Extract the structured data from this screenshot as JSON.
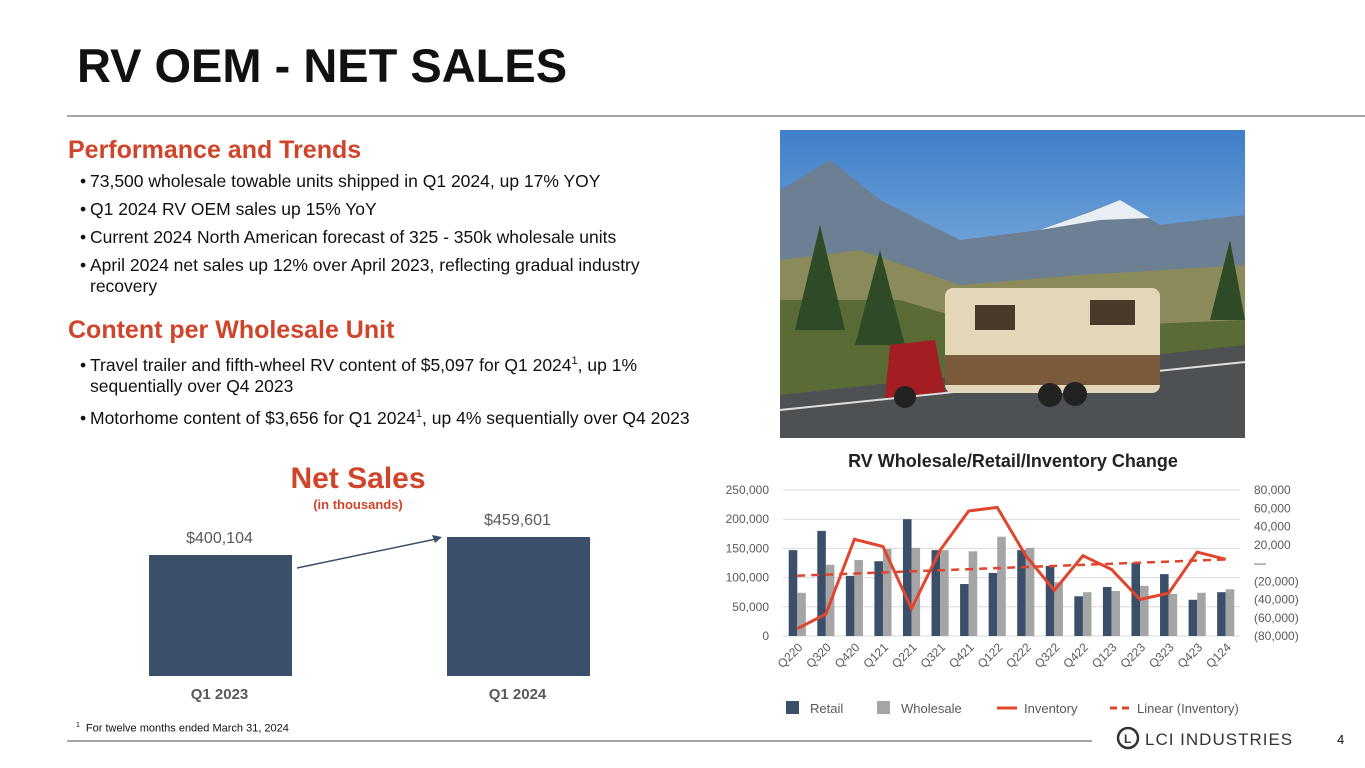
{
  "header": {
    "title": "RV OEM - NET SALES"
  },
  "sections": [
    {
      "heading": "Performance and Trends",
      "bullets": [
        {
          "text": "73,500 wholesale towable units shipped in Q1 2024, up 17% YOY"
        },
        {
          "text": "Q1 2024 RV OEM sales up 15% YoY"
        },
        {
          "text": "Current 2024 North American forecast of 325 - 350k wholesale units"
        },
        {
          "text": "April 2024 net sales up 12% over April 2023, reflecting gradual industry recovery"
        }
      ]
    },
    {
      "heading": "Content per Wholesale Unit",
      "bullets": [
        {
          "text": "Travel trailer and fifth-wheel RV content of $5,097 for Q1 2024",
          "sup": "1",
          "rest": ", up 1% sequentially over Q4 2023"
        },
        {
          "text": "Motorhome content of $3,656 for Q1 2024",
          "sup": "1",
          "rest": ", up 4% sequentially over Q4 2023"
        }
      ]
    }
  ],
  "footnote": {
    "mark": "1",
    "text": "For twelve months ended March 31, 2024"
  },
  "page_number": "4",
  "logo": {
    "text": "LCI INDUSTRIES"
  },
  "chart_data": [
    {
      "type": "bar",
      "title": "Net Sales",
      "subtitle": "(in thousands)",
      "categories": [
        "Q1 2023",
        "Q1 2024"
      ],
      "values": [
        400104,
        459601
      ],
      "value_labels": [
        "$400,104",
        "$459,601"
      ],
      "color": "#3b4f6b"
    },
    {
      "type": "combo",
      "title": "RV Wholesale/Retail/Inventory Change",
      "categories": [
        "Q220",
        "Q320",
        "Q420",
        "Q121",
        "Q221",
        "Q321",
        "Q421",
        "Q122",
        "Q222",
        "Q322",
        "Q422",
        "Q123",
        "Q223",
        "Q323",
        "Q423",
        "Q124"
      ],
      "series": [
        {
          "name": "Retail",
          "type": "bar",
          "color": "#3b4f6b",
          "values": [
            147000,
            180000,
            103000,
            128000,
            200000,
            147000,
            89000,
            108000,
            147000,
            120000,
            68000,
            84000,
            125000,
            106000,
            62000,
            75000
          ]
        },
        {
          "name": "Wholesale",
          "type": "bar",
          "color": "#a5a5a5",
          "values": [
            74000,
            122000,
            130000,
            149000,
            151000,
            147000,
            145000,
            170000,
            151000,
            92000,
            75000,
            77000,
            86000,
            72000,
            74000,
            80000
          ]
        },
        {
          "name": "Inventory",
          "type": "line",
          "axis": "y2",
          "color": "#e0452d",
          "values": [
            -72000,
            -56000,
            26000,
            18000,
            -50000,
            14000,
            57000,
            61000,
            8000,
            -30000,
            8000,
            -7000,
            -40000,
            -33000,
            12000,
            4000
          ]
        },
        {
          "name": "Linear (Inventory)",
          "type": "trendline",
          "axis": "y2",
          "color": "#e0452d"
        }
      ],
      "ylim": [
        0,
        250000
      ],
      "yticks": [
        0,
        {
          "value": 50000,
          "label": "50,000"
        },
        {
          "value": 100000,
          "label": "100,000"
        },
        {
          "value": 150000,
          "label": "150,000"
        },
        {
          "value": 200000,
          "label": "200,000"
        },
        {
          "value": 250000,
          "label": "250,000"
        }
      ],
      "y2lim": [
        -80000,
        80000
      ],
      "y2ticks": [
        {
          "value": -80000,
          "label": "(80,000)"
        },
        {
          "value": -60000,
          "label": "(60,000)"
        },
        {
          "value": -40000,
          "label": "(40,000)"
        },
        {
          "value": -20000,
          "label": "(20,000)"
        },
        {
          "value": 0,
          "label": "—"
        },
        {
          "value": 20000,
          "label": "20,000"
        },
        {
          "value": 40000,
          "label": "40,000"
        },
        {
          "value": 60000,
          "label": "60,000"
        },
        {
          "value": 80000,
          "label": "80,000"
        }
      ],
      "legend": "bottom",
      "grid": true
    }
  ]
}
